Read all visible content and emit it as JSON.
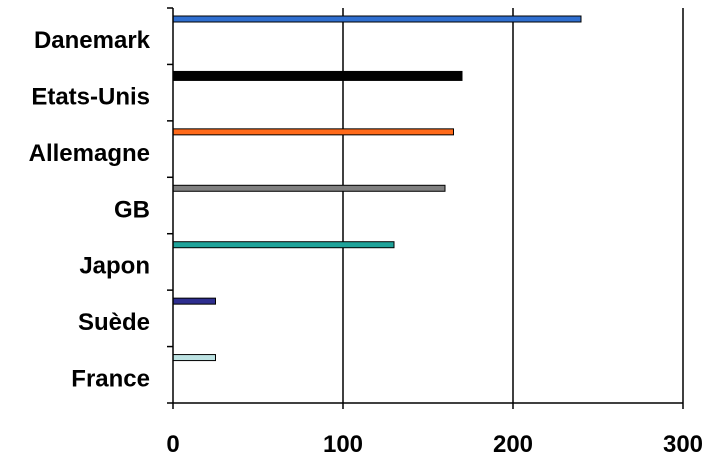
{
  "chart_data": {
    "type": "bar",
    "orientation": "horizontal",
    "title": "",
    "xlabel": "",
    "ylabel": "",
    "categories": [
      "Danemark",
      "Etats-Unis",
      "Allemagne",
      "GB",
      "Japon",
      "Suède",
      "France"
    ],
    "values": [
      240,
      170,
      165,
      160,
      130,
      25,
      25
    ],
    "colors": [
      "#2f6fd0",
      "#000000",
      "#ff6a1a",
      "#808080",
      "#1fa39a",
      "#2e2e8f",
      "#bde3e3"
    ],
    "xlim": [
      0,
      300
    ],
    "xticks": [
      0,
      100,
      200,
      300
    ],
    "grid": "vertical",
    "legend": "none"
  }
}
